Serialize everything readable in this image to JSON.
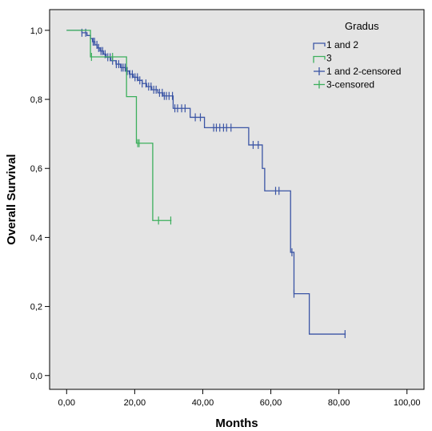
{
  "chart_data": {
    "type": "line",
    "title": "",
    "xlabel": "Months",
    "ylabel": "Overall Survival",
    "xlim": [
      -5,
      105
    ],
    "ylim": [
      -0.04,
      1.06
    ],
    "x_ticks": [
      0,
      20,
      40,
      60,
      80,
      100
    ],
    "x_tick_labels": [
      "0,00",
      "20,00",
      "40,00",
      "60,00",
      "80,00",
      "100,00"
    ],
    "y_ticks": [
      0,
      0.2,
      0.4,
      0.6,
      0.8,
      1.0
    ],
    "y_tick_labels": [
      "0,0",
      "0,2",
      "0,4",
      "0,6",
      "0,8",
      "1,0"
    ],
    "grid": false,
    "background": "#e4e4e4",
    "legend": {
      "title": "Gradus",
      "placement": "top-right",
      "entries": [
        "1 and 2",
        "3",
        "1 and 2-censored",
        "3-censored"
      ]
    },
    "series": [
      {
        "name": "1 and 2",
        "color": "#3b55a5",
        "step_x": [
          0,
          4.5,
          6,
          7,
          7.6,
          8.3,
          9,
          9.8,
          10.8,
          11.6,
          13,
          14.5,
          15.8,
          17.3,
          18.4,
          19.6,
          21,
          22.2,
          23.5,
          25,
          26.8,
          28.3,
          31.3,
          36.3,
          40.5,
          53.5,
          57.5,
          58.2,
          62.8,
          65.8,
          66.8,
          71.3,
          82
        ],
        "step_y": [
          1.0,
          0.993,
          0.985,
          0.976,
          0.967,
          0.958,
          0.949,
          0.94,
          0.931,
          0.922,
          0.912,
          0.902,
          0.892,
          0.882,
          0.873,
          0.864,
          0.855,
          0.846,
          0.837,
          0.828,
          0.819,
          0.81,
          0.774,
          0.748,
          0.718,
          0.668,
          0.6,
          0.535,
          0.535,
          0.357,
          0.237,
          0.12,
          0.12
        ],
        "censored_x": [
          4.5,
          5.6,
          7.8,
          8.2,
          8.9,
          9.4,
          10.1,
          10.6,
          11.3,
          12.1,
          12.8,
          13.5,
          14.6,
          15.3,
          16.1,
          16.6,
          17.2,
          17.8,
          18.6,
          19.3,
          20.1,
          20.8,
          21.5,
          22.2,
          23.3,
          24.1,
          24.8,
          25.6,
          26.3,
          27.3,
          28.1,
          28.7,
          29.3,
          30.1,
          31.1,
          31.8,
          32.6,
          33.8,
          34.8,
          37.8,
          39.3,
          43.2,
          44,
          45,
          46.1,
          47,
          48.3,
          54.8,
          56.3,
          61.4,
          62.4,
          66.2,
          66.8,
          81.8
        ]
      },
      {
        "name": "3",
        "color": "#3caf5c",
        "step_x": [
          0,
          7,
          17.6,
          20.5,
          25.3,
          30.8
        ],
        "step_y": [
          1.0,
          0.923,
          0.808,
          0.673,
          0.449,
          0.449
        ],
        "censored_x": [
          7.3,
          13.5,
          20.9,
          21.3,
          27,
          30.6
        ]
      }
    ]
  }
}
